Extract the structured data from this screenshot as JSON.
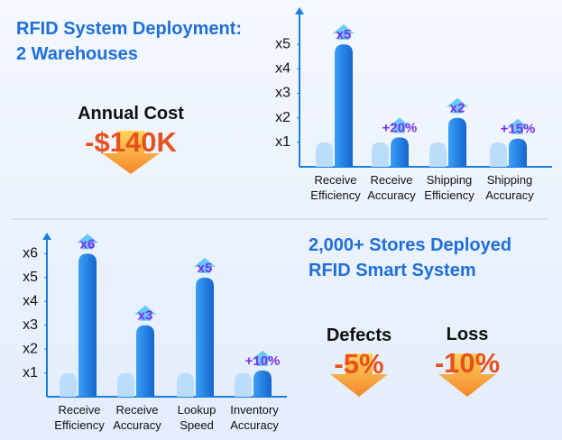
{
  "panels": [
    {
      "title": [
        "RFID System Deployment:",
        "2 Warehouses"
      ],
      "metrics": [
        {
          "label": "Annual Cost",
          "value": "-$140K"
        }
      ]
    },
    {
      "title": [
        "2,000+ Stores Deployed",
        "RFID Smart System"
      ],
      "metrics": [
        {
          "label": "Defects",
          "value": "-5%"
        },
        {
          "label": "Loss",
          "value": "-10%"
        }
      ]
    }
  ],
  "chart_data": [
    {
      "type": "bar",
      "categories": [
        "Receive Efficiency",
        "Receive Accuracy",
        "Shipping Efficiency",
        "Shipping Accuracy"
      ],
      "baseline_values": [
        1,
        1,
        1,
        1
      ],
      "values": [
        5,
        1.2,
        2,
        1.15
      ],
      "value_labels": [
        "x5",
        "+20%",
        "x2",
        "+15%"
      ],
      "baseline_color": "#bcdcfb",
      "color": "#1a7fe0",
      "label_color": "#7a2ff0",
      "ylim": [
        0,
        6
      ],
      "yticks": [
        {
          "value": 1,
          "label": "x1"
        },
        {
          "value": 2,
          "label": "x2"
        },
        {
          "value": 3,
          "label": "x3"
        },
        {
          "value": 4,
          "label": "x4"
        },
        {
          "value": 5,
          "label": "x5"
        }
      ]
    },
    {
      "type": "bar",
      "categories": [
        "Receive Efficiency",
        "Receive Accuracy",
        "Lookup Speed",
        "Inventory Accuracy"
      ],
      "baseline_values": [
        1,
        1,
        1,
        1
      ],
      "values": [
        6,
        3,
        5,
        1.1
      ],
      "value_labels": [
        "x6",
        "x3",
        "x5",
        "+10%"
      ],
      "baseline_color": "#bcdcfb",
      "color": "#1a7fe0",
      "label_color": "#7a2ff0",
      "ylim": [
        0,
        7
      ],
      "yticks": [
        {
          "value": 1,
          "label": "x1"
        },
        {
          "value": 2,
          "label": "x2"
        },
        {
          "value": 3,
          "label": "x3"
        },
        {
          "value": 4,
          "label": "x4"
        },
        {
          "value": 5,
          "label": "x5"
        },
        {
          "value": 6,
          "label": "x6"
        }
      ]
    }
  ]
}
